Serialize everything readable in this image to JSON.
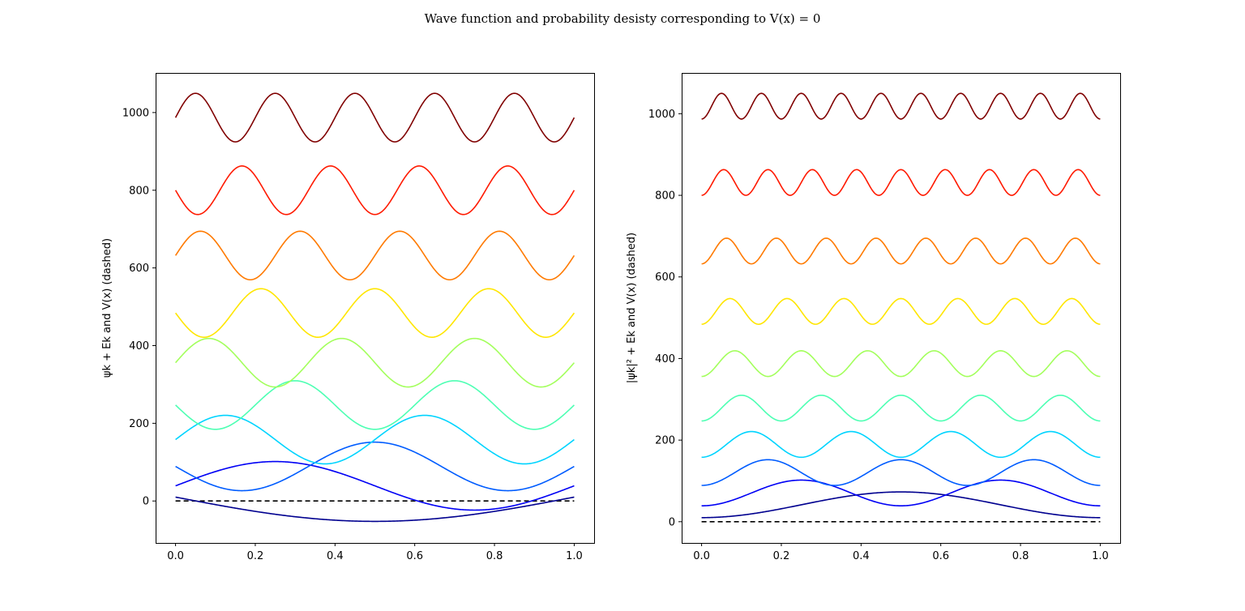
{
  "figure": {
    "suptitle": "Wave function and probability desisty corresponding to V(x) = 0"
  },
  "colors": [
    "#00008f",
    "#0000f5",
    "#005cff",
    "#00d4ff",
    "#4dffb3",
    "#a3ff5c",
    "#ffe600",
    "#ff7a00",
    "#ff1a00",
    "#800000"
  ],
  "chart_data": [
    {
      "type": "line",
      "title": "",
      "xlabel": "",
      "ylabel": "ψk + Ek and V(x) (dashed)",
      "xlim": [
        -0.05,
        1.05
      ],
      "ylim": [
        -108,
        1102
      ],
      "xticks": [
        0.0,
        0.2,
        0.4,
        0.6,
        0.8,
        1.0
      ],
      "xtick_labels": [
        "0.0",
        "0.2",
        "0.4",
        "0.6",
        "0.8",
        "1.0"
      ],
      "yticks": [
        0,
        200,
        400,
        600,
        800,
        1000
      ],
      "ytick_labels": [
        "0",
        "200",
        "400",
        "600",
        "800",
        "1000"
      ],
      "grid": false,
      "function": "psi",
      "amplitude": 62.5,
      "energies": [
        10,
        39,
        89,
        158,
        247,
        356,
        484,
        632,
        800,
        987
      ],
      "series": [
        {
          "n": 1,
          "energy": 10,
          "color": "#00008f"
        },
        {
          "n": 2,
          "energy": 39,
          "color": "#0000f5"
        },
        {
          "n": 3,
          "energy": 89,
          "color": "#005cff"
        },
        {
          "n": 4,
          "energy": 158,
          "color": "#00d4ff"
        },
        {
          "n": 5,
          "energy": 247,
          "color": "#4dffb3"
        },
        {
          "n": 6,
          "energy": 356,
          "color": "#a3ff5c"
        },
        {
          "n": 7,
          "energy": 484,
          "color": "#ffe600"
        },
        {
          "n": 8,
          "energy": 632,
          "color": "#ff7a00"
        },
        {
          "n": 9,
          "energy": 800,
          "color": "#ff1a00"
        },
        {
          "n": 10,
          "energy": 987,
          "color": "#800000"
        }
      ],
      "potential": {
        "style": "dashed",
        "color": "#000000",
        "x": [
          0.0,
          1.0
        ],
        "y": [
          0,
          0
        ]
      }
    },
    {
      "type": "line",
      "title": "",
      "xlabel": "",
      "ylabel": "|ψk|² + Ek and V(x) (dashed)",
      "xlim": [
        -0.05,
        1.05
      ],
      "ylim": [
        -52,
        1100
      ],
      "xticks": [
        0.0,
        0.2,
        0.4,
        0.6,
        0.8,
        1.0
      ],
      "xtick_labels": [
        "0.0",
        "0.2",
        "0.4",
        "0.6",
        "0.8",
        "1.0"
      ],
      "yticks": [
        0,
        200,
        400,
        600,
        800,
        1000
      ],
      "ytick_labels": [
        "0",
        "200",
        "400",
        "600",
        "800",
        "1000"
      ],
      "grid": false,
      "function": "psi_squared",
      "amplitude": 63,
      "energies": [
        10,
        39,
        89,
        158,
        247,
        356,
        484,
        632,
        800,
        987
      ],
      "series": [
        {
          "n": 1,
          "energy": 10,
          "color": "#00008f"
        },
        {
          "n": 2,
          "energy": 39,
          "color": "#0000f5"
        },
        {
          "n": 3,
          "energy": 89,
          "color": "#005cff"
        },
        {
          "n": 4,
          "energy": 158,
          "color": "#00d4ff"
        },
        {
          "n": 5,
          "energy": 247,
          "color": "#4dffb3"
        },
        {
          "n": 6,
          "energy": 356,
          "color": "#a3ff5c"
        },
        {
          "n": 7,
          "energy": 484,
          "color": "#ffe600"
        },
        {
          "n": 8,
          "energy": 632,
          "color": "#ff7a00"
        },
        {
          "n": 9,
          "energy": 800,
          "color": "#ff1a00"
        },
        {
          "n": 10,
          "energy": 987,
          "color": "#800000"
        }
      ],
      "potential": {
        "style": "dashed",
        "color": "#000000",
        "x": [
          0.0,
          1.0
        ],
        "y": [
          0,
          0
        ]
      }
    }
  ]
}
